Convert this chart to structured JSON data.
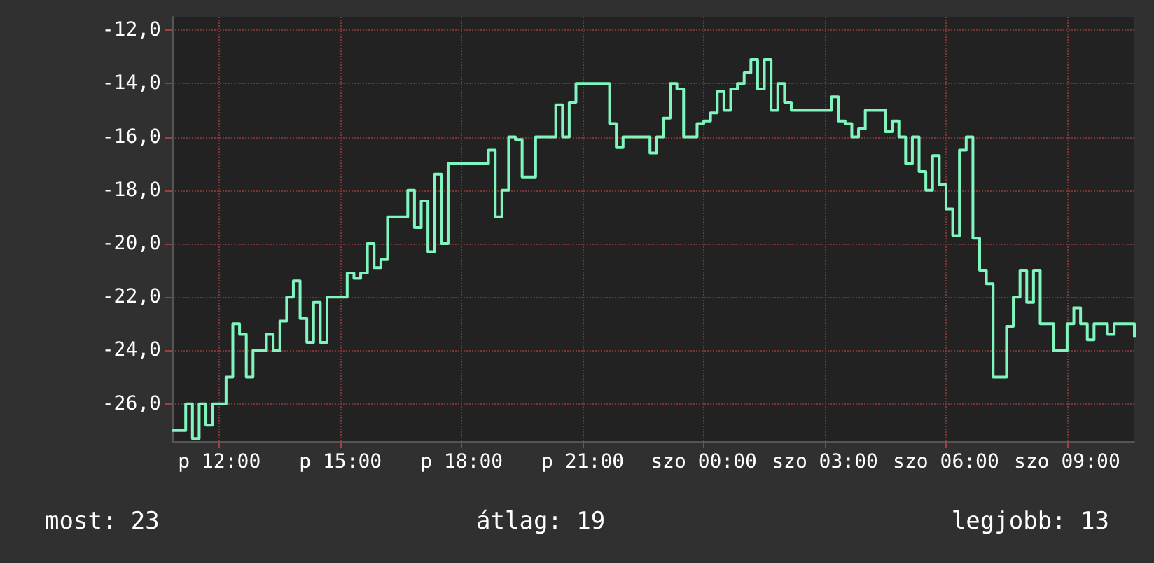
{
  "chart_data": {
    "type": "step",
    "categories": [
      null,
      null,
      null,
      null,
      null,
      null,
      null,
      "p 12:00",
      null,
      null,
      null,
      null,
      null,
      null,
      null,
      null,
      null,
      null,
      null,
      null,
      null,
      null,
      null,
      null,
      null,
      "p 15:00",
      null,
      null,
      null,
      null,
      null,
      null,
      null,
      null,
      null,
      null,
      null,
      null,
      null,
      null,
      null,
      null,
      null,
      "p 18:00",
      null,
      null,
      null,
      null,
      null,
      null,
      null,
      null,
      null,
      null,
      null,
      null,
      null,
      null,
      null,
      null,
      null,
      "p 21:00",
      null,
      null,
      null,
      null,
      null,
      null,
      null,
      null,
      null,
      null,
      null,
      null,
      null,
      null,
      null,
      null,
      null,
      "szo 00:00",
      null,
      null,
      null,
      null,
      null,
      null,
      null,
      null,
      null,
      null,
      null,
      null,
      null,
      null,
      null,
      null,
      null,
      "szo 03:00",
      null,
      null,
      null,
      null,
      null,
      null,
      null,
      null,
      null,
      null,
      null,
      null,
      null,
      null,
      null,
      null,
      null,
      "szo 06:00",
      null,
      null,
      null,
      null,
      null,
      null,
      null,
      null,
      null,
      null,
      null,
      null,
      null,
      null,
      null,
      null,
      null,
      "szo 09:00",
      null,
      null,
      null,
      null,
      null,
      null,
      null,
      null,
      null,
      null
    ],
    "series": [
      {
        "color": "#80f5bd",
        "values": [
          -27,
          -27,
          -26,
          -27.3,
          -26,
          -26.8,
          -26,
          -26,
          -25,
          -23,
          -23.4,
          -25,
          -24,
          -24,
          -23.4,
          -24,
          -22.9,
          -22,
          -21.4,
          -22.8,
          -23.7,
          -22.2,
          -23.7,
          -22,
          -22,
          -22,
          -21.1,
          -21.3,
          -21.1,
          -20,
          -20.9,
          -20.6,
          -19,
          -19,
          -19,
          -18,
          -19.4,
          -18.4,
          -20.3,
          -17.4,
          -20,
          -17,
          -17,
          -17,
          -17,
          -17,
          -17,
          -16.5,
          -19,
          -18,
          -16,
          -16.1,
          -17.5,
          -17.5,
          -16,
          -16,
          -16,
          -14.8,
          -16,
          -14.7,
          -14,
          -14,
          -14,
          -14,
          -14,
          -15.5,
          -16.4,
          -16,
          -16,
          -16,
          -16,
          -16.6,
          -16,
          -15.3,
          -14,
          -14.2,
          -16,
          -16,
          -15.5,
          -15.4,
          -15.1,
          -14.3,
          -15,
          -14.2,
          -14,
          -13.6,
          -13.1,
          -14.2,
          -13.1,
          -15,
          -14,
          -14.7,
          -15,
          -15,
          -15,
          -15,
          -15,
          -15,
          -14.5,
          -15.4,
          -15.5,
          -16,
          -15.7,
          -15,
          -15,
          -15,
          -15.8,
          -15.4,
          -16,
          -17,
          -16,
          -17.3,
          -18,
          -16.7,
          -17.8,
          -18.7,
          -19.7,
          -16.5,
          -16,
          -19.8,
          -21,
          -21.5,
          -25,
          -25,
          -23.1,
          -22,
          -21,
          -22.2,
          -21,
          -23,
          -23,
          -24,
          -24,
          -23,
          -22.4,
          -23,
          -23.6,
          -23,
          -23,
          -23.4,
          -23,
          -23,
          -23,
          -23.5
        ]
      }
    ],
    "ylim": [
      -27.4,
      -11.5
    ],
    "yticks": [
      {
        "value": -26,
        "label": "-26,0"
      },
      {
        "value": -24,
        "label": "-24,0"
      },
      {
        "value": -22,
        "label": "-22,0"
      },
      {
        "value": -20,
        "label": "-20,0"
      },
      {
        "value": -18,
        "label": "-18,0"
      },
      {
        "value": -16,
        "label": "-16,0"
      },
      {
        "value": -14,
        "label": "-14,0"
      },
      {
        "value": -12,
        "label": "-12,0"
      }
    ],
    "grid": true,
    "annotations": [
      "most: 23",
      "átlag: 19",
      "legjobb: 13"
    ]
  }
}
